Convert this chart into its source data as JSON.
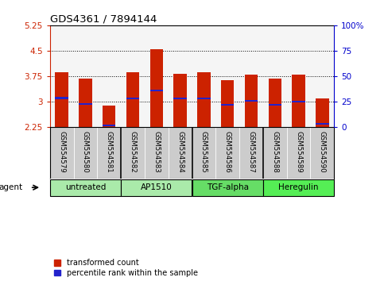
{
  "title": "GDS4361 / 7894144",
  "samples": [
    "GSM554579",
    "GSM554580",
    "GSM554581",
    "GSM554582",
    "GSM554583",
    "GSM554584",
    "GSM554585",
    "GSM554586",
    "GSM554587",
    "GSM554588",
    "GSM554589",
    "GSM554590"
  ],
  "bar_values": [
    3.85,
    3.68,
    2.88,
    3.85,
    4.55,
    3.82,
    3.85,
    3.62,
    3.8,
    3.68,
    3.79,
    3.08
  ],
  "percentile_values": [
    3.1,
    2.92,
    2.28,
    3.08,
    3.32,
    3.08,
    3.08,
    2.9,
    3.02,
    2.9,
    2.99,
    2.34
  ],
  "ymin": 2.25,
  "ymax": 5.25,
  "yticks": [
    2.25,
    3.0,
    3.75,
    4.5,
    5.25
  ],
  "ytick_labels": [
    "2.25",
    "3",
    "3.75",
    "4.5",
    "5.25"
  ],
  "right_yticks": [
    0,
    25,
    50,
    75,
    100
  ],
  "right_ytick_labels": [
    "0",
    "25",
    "50",
    "75",
    "100%"
  ],
  "bar_color": "#cc2200",
  "percentile_color": "#2222cc",
  "bar_width": 0.55,
  "groups": [
    {
      "label": "untreated",
      "start": 0,
      "end": 3
    },
    {
      "label": "AP1510",
      "start": 3,
      "end": 6
    },
    {
      "label": "TGF-alpha",
      "start": 6,
      "end": 9
    },
    {
      "label": "Heregulin",
      "start": 9,
      "end": 12
    }
  ],
  "group_colors": [
    "#aaeaaa",
    "#aaeaaa",
    "#66dd66",
    "#55ee55"
  ],
  "agent_label": "agent",
  "legend_items": [
    {
      "label": "transformed count",
      "color": "#cc2200"
    },
    {
      "label": "percentile rank within the sample",
      "color": "#2222cc"
    }
  ],
  "left_axis_color": "#cc2200",
  "right_axis_color": "#0000cc",
  "background_color": "#ffffff",
  "plot_bg_color": "#f5f5f5",
  "label_bg_color": "#cccccc"
}
